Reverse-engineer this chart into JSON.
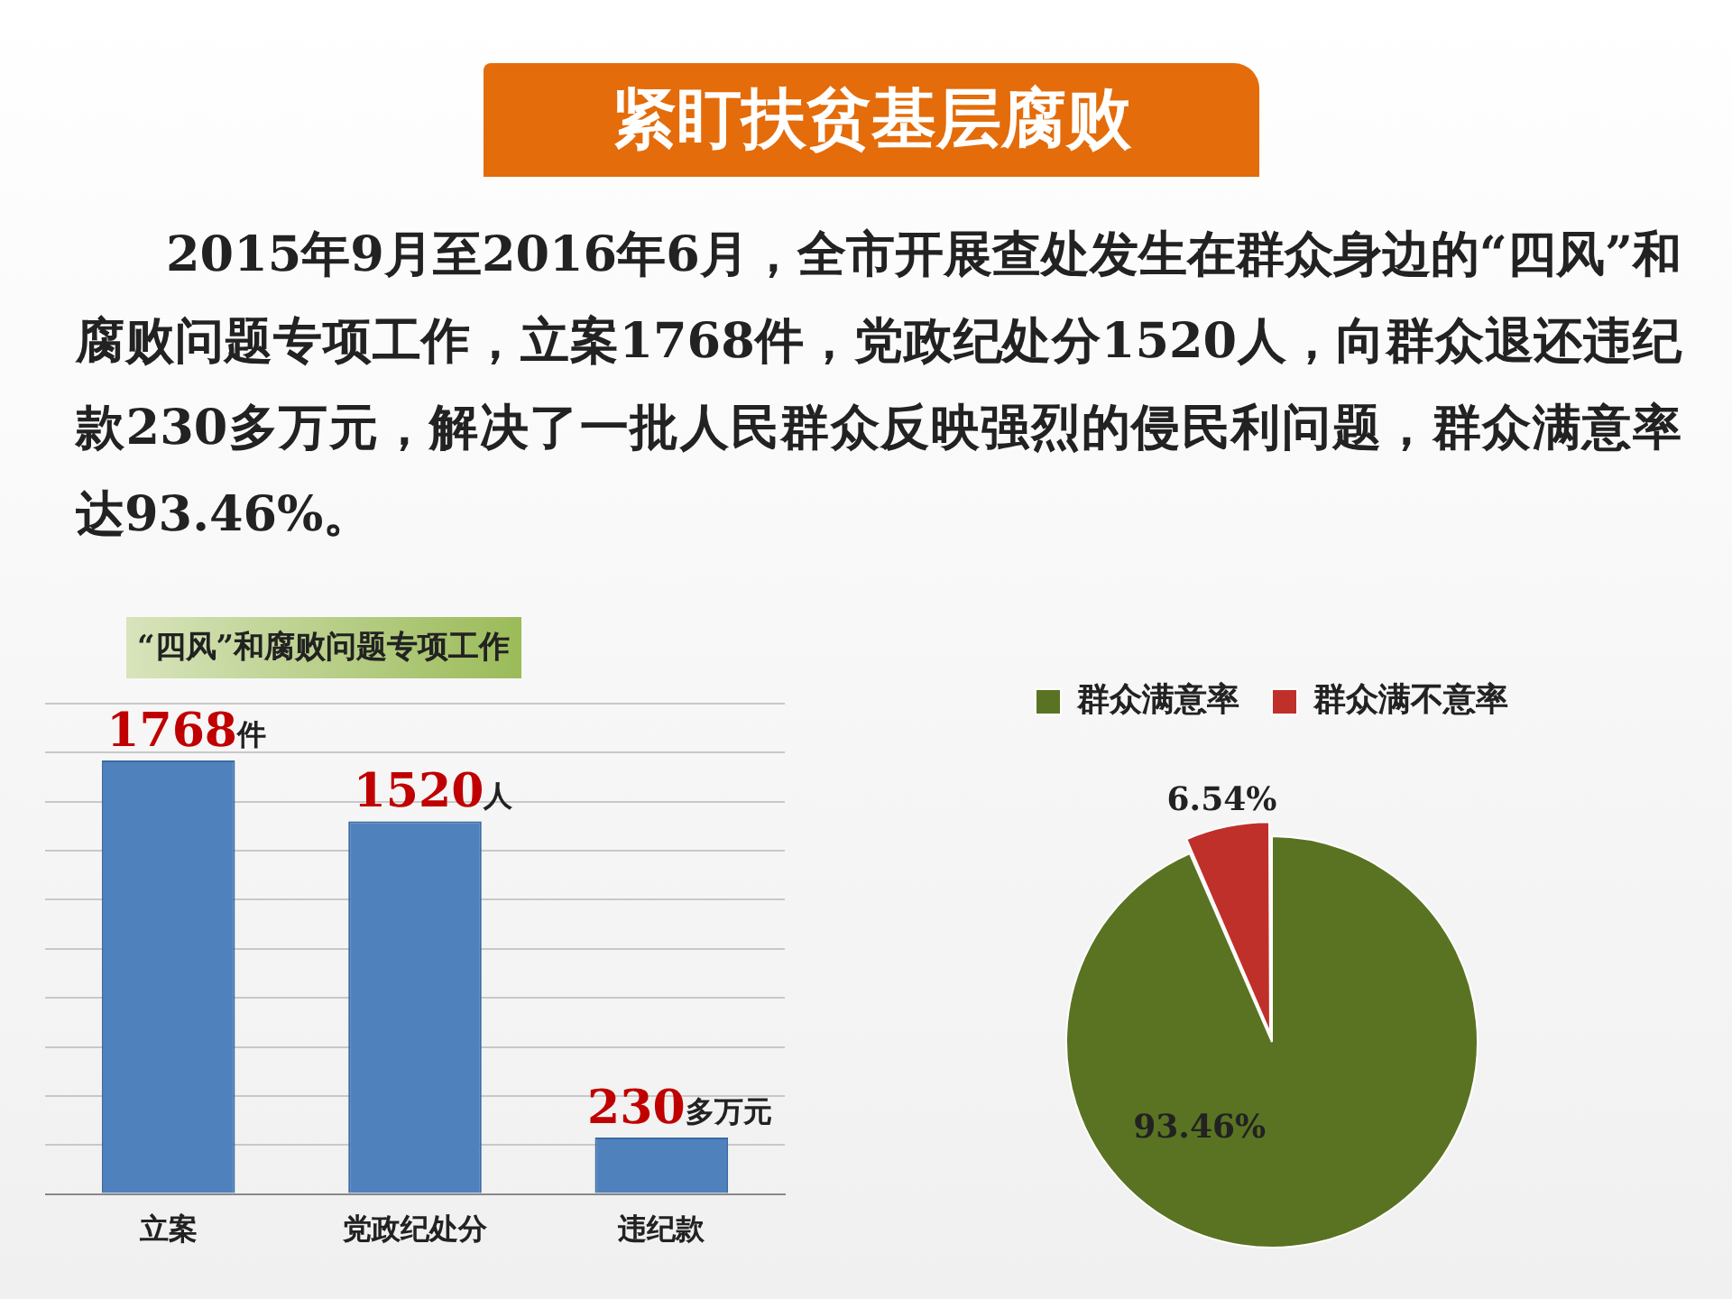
{
  "chart_data": [
    {
      "type": "other",
      "title": "紧盯扶贫基层腐败",
      "annotations": [
        "2015年9月至2016年6月，全市开展查处发生在群众身边的“四风”和腐败问题专项工作，立案1768件，党政纪处分1520人，向群众退还违纪款230多万元，解决了一批人民群众反映强烈的侵民利问题，群众满意率达93.46%。"
      ]
    },
    {
      "type": "bar",
      "title": "“四风”和腐败问题专项工作",
      "categories": [
        "立案",
        "党政纪处分",
        "违纪款"
      ],
      "values": [
        1768,
        1520,
        230
      ],
      "value_labels": [
        "1768件",
        "1520人",
        "230多万元"
      ],
      "color": "#4f81bd",
      "ylim": [
        0,
        2000
      ],
      "yticks": [
        {
          "value": 0,
          "label": null
        },
        {
          "value": 200,
          "label": null
        },
        {
          "value": 400,
          "label": null
        },
        {
          "value": 600,
          "label": null
        },
        {
          "value": 800,
          "label": null
        },
        {
          "value": 1000,
          "label": null
        },
        {
          "value": 1200,
          "label": null
        },
        {
          "value": 1400,
          "label": null
        },
        {
          "value": 1600,
          "label": null
        },
        {
          "value": 1800,
          "label": null
        },
        {
          "value": 2000,
          "label": null
        }
      ],
      "grid": "y",
      "tick_labels": "x"
    },
    {
      "type": "pie",
      "categories": [
        "群众满意率",
        "群众满不意率"
      ],
      "values": [
        93.46,
        6.54
      ],
      "colors": [
        "#5a7322",
        "#c0302a"
      ],
      "value_labels": [
        "93.46%",
        "6.54%"
      ],
      "legend": "top"
    }
  ]
}
